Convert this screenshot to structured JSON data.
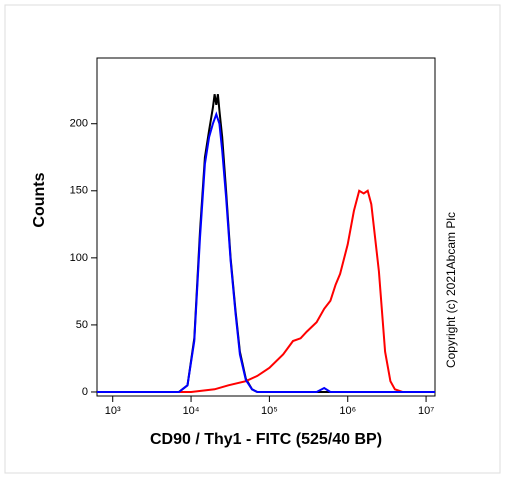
{
  "chart_data": {
    "type": "line",
    "x_scale": "log",
    "x_label": "CD90 / Thy1 - FITC  (525/40 BP)",
    "y_label": "Counts",
    "annotation": "Copyright (c) 2021Abcam Plc",
    "xlim": [
      630,
      13000000
    ],
    "ylim": [
      -3,
      249
    ],
    "xticks": [
      {
        "value": 1000,
        "label": "10³"
      },
      {
        "value": 10000,
        "label": "10⁴"
      },
      {
        "value": 100000,
        "label": "10⁵"
      },
      {
        "value": 1000000,
        "label": "10⁶"
      },
      {
        "value": 10000000,
        "label": "10⁷"
      }
    ],
    "yticks": [
      0,
      50,
      100,
      150,
      200
    ],
    "series": [
      {
        "color": "#000000",
        "x": [
          630,
          7000,
          9000,
          11000,
          13000,
          15000,
          17000,
          19000,
          20000,
          21000,
          22000,
          23000,
          25000,
          28000,
          32000,
          37000,
          42000,
          50000,
          60000,
          70000,
          13000000
        ],
        "values": [
          0,
          0,
          5,
          40,
          120,
          175,
          195,
          212,
          222,
          214,
          222,
          210,
          190,
          150,
          100,
          60,
          30,
          10,
          2,
          0,
          0
        ]
      },
      {
        "color": "#ff0000",
        "x": [
          630,
          10000,
          20000,
          30000,
          50000,
          70000,
          100000,
          150000,
          200000,
          250000,
          300000,
          400000,
          500000,
          600000,
          700000,
          800000,
          1000000,
          1200000,
          1400000,
          1600000,
          1800000,
          2000000,
          2500000,
          3000000,
          3500000,
          4000000,
          5000000,
          13000000
        ],
        "values": [
          0,
          0,
          2,
          5,
          8,
          12,
          18,
          28,
          38,
          40,
          45,
          52,
          62,
          68,
          80,
          88,
          110,
          135,
          150,
          148,
          150,
          140,
          90,
          30,
          8,
          2,
          0,
          0
        ]
      },
      {
        "color": "#0000ff",
        "x": [
          630,
          7000,
          9000,
          11000,
          13000,
          15000,
          17000,
          19000,
          21000,
          23000,
          25000,
          28000,
          32000,
          37000,
          42000,
          50000,
          60000,
          70000,
          400000,
          500000,
          600000,
          13000000
        ],
        "values": [
          0,
          0,
          5,
          38,
          115,
          170,
          190,
          200,
          207,
          200,
          180,
          145,
          98,
          58,
          28,
          9,
          2,
          0,
          0,
          3,
          0,
          0
        ]
      }
    ]
  }
}
